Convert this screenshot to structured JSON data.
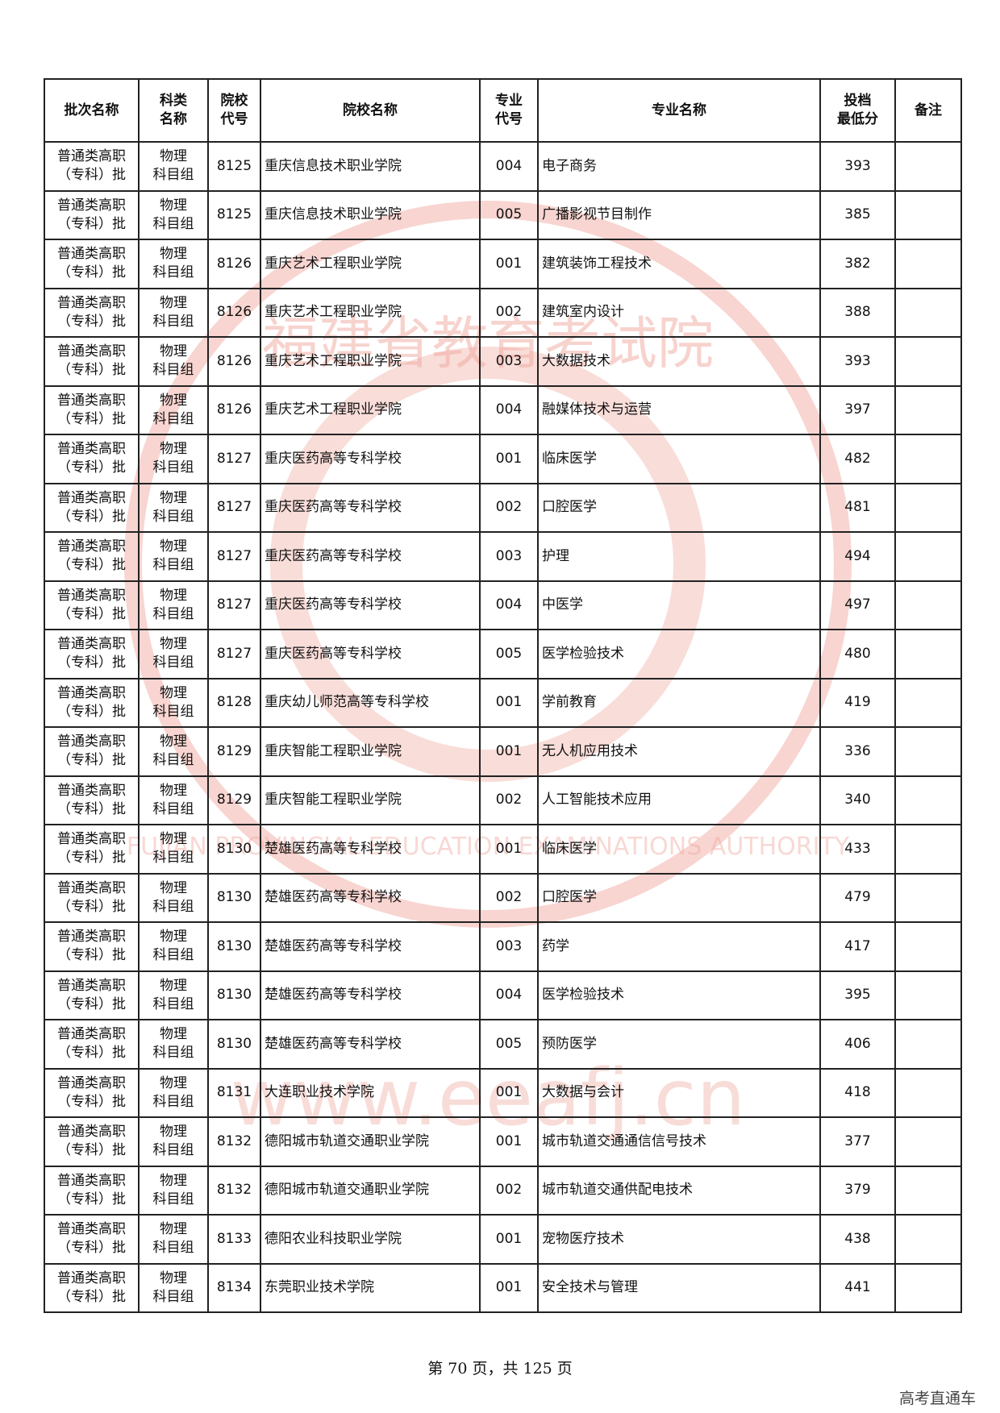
{
  "watermark": {
    "org": "福建省教育考试院",
    "org_en": "FUJIAN PROVINCIAL EDUCATION EXAMINATIONS AUTHORITY",
    "url": "www.eeafj.cn"
  },
  "table": {
    "header": [
      [
        "批次名称"
      ],
      [
        "科类",
        "名称"
      ],
      [
        "院校",
        "代号"
      ],
      [
        "院校名称"
      ],
      [
        "专业",
        "代号"
      ],
      [
        "专业名称"
      ],
      [
        "投档",
        "最低分"
      ],
      [
        "备注"
      ]
    ],
    "rows": [
      [
        [
          "普通类高职",
          "（专科）批"
        ],
        [
          "物理",
          "科目组"
        ],
        "8125",
        "重庆信息技术职业学院",
        "004",
        "电子商务",
        393
      ],
      [
        [
          "普通类高职",
          "（专科）批"
        ],
        [
          "物理",
          "科目组"
        ],
        "8125",
        "重庆信息技术职业学院",
        "005",
        "广播影视节目制作",
        385
      ],
      [
        [
          "普通类高职",
          "（专科）批"
        ],
        [
          "物理",
          "科目组"
        ],
        "8126",
        "重庆艺术工程职业学院",
        "001",
        "建筑装饰工程技术",
        382
      ],
      [
        [
          "普通类高职",
          "（专科）批"
        ],
        [
          "物理",
          "科目组"
        ],
        "8126",
        "重庆艺术工程职业学院",
        "002",
        "建筑室内设计",
        388
      ],
      [
        [
          "普通类高职",
          "（专科）批"
        ],
        [
          "物理",
          "科目组"
        ],
        "8126",
        "重庆艺术工程职业学院",
        "003",
        "大数据技术",
        393
      ],
      [
        [
          "普通类高职",
          "（专科）批"
        ],
        [
          "物理",
          "科目组"
        ],
        "8126",
        "重庆艺术工程职业学院",
        "004",
        "融媒体技术与运营",
        397
      ],
      [
        [
          "普通类高职",
          "（专科）批"
        ],
        [
          "物理",
          "科目组"
        ],
        "8127",
        "重庆医药高等专科学校",
        "001",
        "临床医学",
        482
      ],
      [
        [
          "普通类高职",
          "（专科）批"
        ],
        [
          "物理",
          "科目组"
        ],
        "8127",
        "重庆医药高等专科学校",
        "002",
        "口腔医学",
        481
      ],
      [
        [
          "普通类高职",
          "（专科）批"
        ],
        [
          "物理",
          "科目组"
        ],
        "8127",
        "重庆医药高等专科学校",
        "003",
        "护理",
        494
      ],
      [
        [
          "普通类高职",
          "（专科）批"
        ],
        [
          "物理",
          "科目组"
        ],
        "8127",
        "重庆医药高等专科学校",
        "004",
        "中医学",
        497
      ],
      [
        [
          "普通类高职",
          "（专科）批"
        ],
        [
          "物理",
          "科目组"
        ],
        "8127",
        "重庆医药高等专科学校",
        "005",
        "医学检验技术",
        480
      ],
      [
        [
          "普通类高职",
          "（专科）批"
        ],
        [
          "物理",
          "科目组"
        ],
        "8128",
        "重庆幼儿师范高等专科学校",
        "001",
        "学前教育",
        419
      ],
      [
        [
          "普通类高职",
          "（专科）批"
        ],
        [
          "物理",
          "科目组"
        ],
        "8129",
        "重庆智能工程职业学院",
        "001",
        "无人机应用技术",
        336
      ],
      [
        [
          "普通类高职",
          "（专科）批"
        ],
        [
          "物理",
          "科目组"
        ],
        "8129",
        "重庆智能工程职业学院",
        "002",
        "人工智能技术应用",
        340
      ],
      [
        [
          "普通类高职",
          "（专科）批"
        ],
        [
          "物理",
          "科目组"
        ],
        "8130",
        "楚雄医药高等专科学校",
        "001",
        "临床医学",
        433
      ],
      [
        [
          "普通类高职",
          "（专科）批"
        ],
        [
          "物理",
          "科目组"
        ],
        "8130",
        "楚雄医药高等专科学校",
        "002",
        "口腔医学",
        479
      ],
      [
        [
          "普通类高职",
          "（专科）批"
        ],
        [
          "物理",
          "科目组"
        ],
        "8130",
        "楚雄医药高等专科学校",
        "003",
        "药学",
        417
      ],
      [
        [
          "普通类高职",
          "（专科）批"
        ],
        [
          "物理",
          "科目组"
        ],
        "8130",
        "楚雄医药高等专科学校",
        "004",
        "医学检验技术",
        395
      ],
      [
        [
          "普通类高职",
          "（专科）批"
        ],
        [
          "物理",
          "科目组"
        ],
        "8130",
        "楚雄医药高等专科学校",
        "005",
        "预防医学",
        406
      ],
      [
        [
          "普通类高职",
          "（专科）批"
        ],
        [
          "物理",
          "科目组"
        ],
        "8131",
        "大连职业技术学院",
        "001",
        "大数据与会计",
        418
      ],
      [
        [
          "普通类高职",
          "（专科）批"
        ],
        [
          "物理",
          "科目组"
        ],
        "8132",
        "德阳城市轨道交通职业学院",
        "001",
        "城市轨道交通通信信号技术",
        377
      ],
      [
        [
          "普通类高职",
          "（专科）批"
        ],
        [
          "物理",
          "科目组"
        ],
        "8132",
        "德阳城市轨道交通职业学院",
        "002",
        "城市轨道交通供配电技术",
        379
      ],
      [
        [
          "普通类高职",
          "（专科）批"
        ],
        [
          "物理",
          "科目组"
        ],
        "8133",
        "德阳农业科技职业学院",
        "001",
        "宠物医疗技术",
        438
      ],
      [
        [
          "普通类高职",
          "（专科）批"
        ],
        [
          "物理",
          "科目组"
        ],
        "8134",
        "东莞职业技术学院",
        "001",
        "安全技术与管理",
        441
      ]
    ]
  },
  "footer": {
    "page": "第 70 页，共 125 页",
    "source": "高考直通车"
  }
}
